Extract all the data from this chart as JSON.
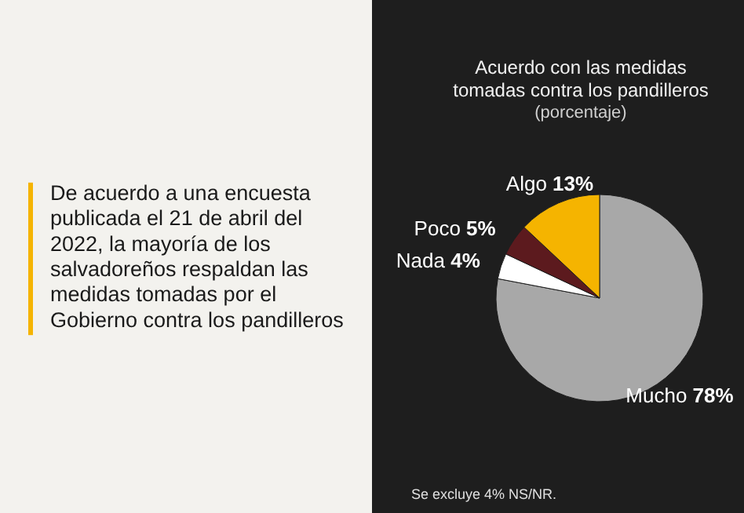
{
  "chart_data": [
    {
      "type": "other",
      "annotations": [
        "De acuerdo a una encuesta publicada el 21 de abril del 2022, la mayoría de los salvadoreños respaldan las medidas tomadas por el Gobierno contra los pandilleros"
      ]
    },
    {
      "type": "pie",
      "title": "Acuerdo con las medidas tomadas contra los pandilleros",
      "subtitle": "(porcentaje)",
      "categories": [
        "Mucho",
        "Nada",
        "Poco",
        "Algo"
      ],
      "values": [
        78,
        4,
        5,
        13
      ],
      "colors": [
        "#a8a8a8",
        "#ffffff",
        "#5c1a1e",
        "#f5b400"
      ],
      "value_labels": [
        "78%",
        "4%",
        "5%",
        "13%"
      ],
      "annotations": [
        "Se excluye 4% NS/NR."
      ]
    }
  ]
}
